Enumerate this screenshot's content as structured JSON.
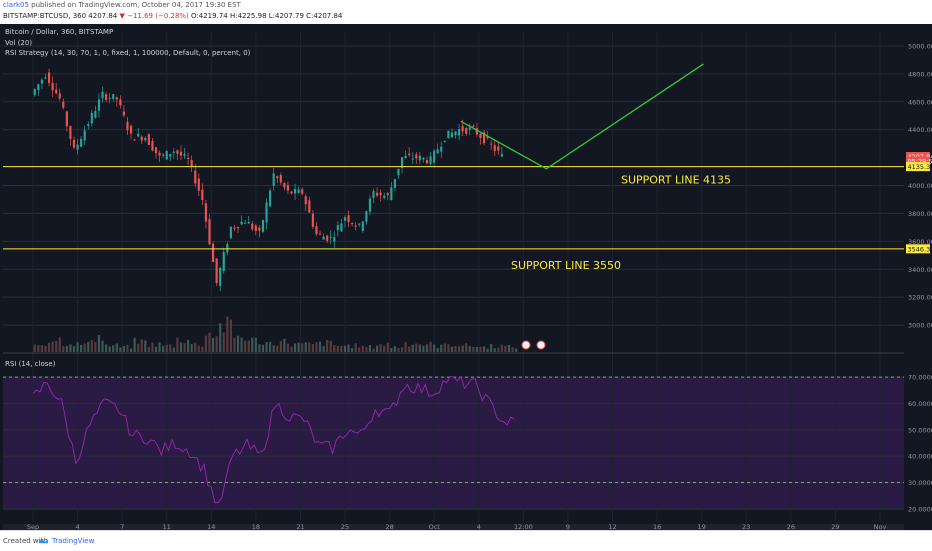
{
  "header": {
    "user": "clark05",
    "published": "published on TradingView.com, October 04, 2017 19:30 EST",
    "symbol": "BITSTAMP:BTCUSD, 360",
    "last": "4207.84",
    "change": "▼ −11.69 (−0.28%)",
    "ohlc": "O:4219.74 H:4225.98 L:4207.79 C:4207.84"
  },
  "legend": {
    "title": "Bitcoin / Dollar, 360, BITSTAMP",
    "vol": "Vol (20)",
    "strategy": "RSI Strategy (14, 30, 70, 1, 0, fixed, 1, 100000, Default, 0, percent, 0)",
    "rsi": "RSI (14, close)"
  },
  "footer": {
    "created": "Created with",
    "brand": "TradingView"
  },
  "colors": {
    "background": "#131722",
    "bull": "#26a69a",
    "bear": "#ef5350",
    "support": "#ffeb3b",
    "projection": "#33cc33",
    "rsi_line": "#9c27b0",
    "rsi_band": "#2a1b45"
  },
  "chart_data": [
    {
      "type": "candlestick",
      "title": "Bitcoin / Dollar, 360, BITSTAMP",
      "ylim": [
        2800,
        5100
      ],
      "y_scale": "linear",
      "y_ticks": [
        "5000.00",
        "4800.00",
        "4600.00",
        "4400.00",
        "4207.84",
        "4000.00",
        "3800.00",
        "3600.00",
        "3400.00",
        "3200.00",
        "3000.00"
      ],
      "x_ticks": [
        "Sep",
        "4",
        "7",
        "11",
        "14",
        "18",
        "21",
        "25",
        "28",
        "Oct",
        "4",
        "12:00",
        "9",
        "12",
        "16",
        "19",
        "23",
        "26",
        "29",
        "Nov"
      ],
      "price_labels": [
        {
          "value": 4207.84,
          "label": "4207.84",
          "color": "#ef5350"
        },
        {
          "value": 4175.0,
          "label": "05:29:50",
          "color": "#ef5350"
        },
        {
          "value": 4135.34,
          "label": "4135.34",
          "color": "#ffeb3b"
        },
        {
          "value": 3546.33,
          "label": "3546.33",
          "color": "#ffeb3b"
        }
      ],
      "support_lines": [
        {
          "value": 4135.34,
          "label": "SUPPORT LINE 4135"
        },
        {
          "value": 3546.33,
          "label": "SUPPORT LINE 3550"
        }
      ],
      "projection": [
        {
          "date": "Oct 1",
          "price": 4460
        },
        {
          "date": "Oct 7",
          "price": 4120
        },
        {
          "date": "Oct 18",
          "price": 4870
        }
      ],
      "price_path": [
        [
          "Sep 1",
          4650
        ],
        [
          "Sep 2",
          4800
        ],
        [
          "Sep 3",
          4620
        ],
        [
          "Sep 4",
          4250
        ],
        [
          "Sep 5",
          4450
        ],
        [
          "Sep 6",
          4650
        ],
        [
          "Sep 7",
          4620
        ],
        [
          "Sep 8",
          4350
        ],
        [
          "Sep 9",
          4350
        ],
        [
          "Sep 10",
          4200
        ],
        [
          "Sep 11",
          4250
        ],
        [
          "Sep 12",
          4180
        ],
        [
          "Sep 13",
          3900
        ],
        [
          "Sep 14",
          3300
        ],
        [
          "Sep 15",
          3700
        ],
        [
          "Sep 16",
          3750
        ],
        [
          "Sep 17",
          3650
        ],
        [
          "Sep 18",
          4080
        ],
        [
          "Sep 19",
          3950
        ],
        [
          "Sep 20",
          3950
        ],
        [
          "Sep 21",
          3650
        ],
        [
          "Sep 22",
          3620
        ],
        [
          "Sep 23",
          3780
        ],
        [
          "Sep 24",
          3700
        ],
        [
          "Sep 25",
          3950
        ],
        [
          "Sep 26",
          3920
        ],
        [
          "Sep 27",
          4200
        ],
        [
          "Sep 28",
          4200
        ],
        [
          "Sep 29",
          4180
        ],
        [
          "Sep 30",
          4350
        ],
        [
          "Oct 1",
          4400
        ],
        [
          "Oct 2",
          4400
        ],
        [
          "Oct 3",
          4310
        ],
        [
          "Oct 4",
          4210
        ]
      ]
    },
    {
      "type": "bar",
      "title": "Vol (20)",
      "values_relative": [
        0.3,
        0.5,
        0.35,
        0.3,
        0.6,
        0.25,
        0.2,
        0.4,
        0.3,
        0.25,
        0.5,
        0.3,
        0.7,
        1.0,
        0.6,
        0.45,
        0.35,
        0.4,
        0.3,
        0.3,
        0.35,
        0.25,
        0.25,
        0.2,
        0.3,
        0.2,
        0.35,
        0.3,
        0.25,
        0.3,
        0.25,
        0.2,
        0.25,
        0.2
      ]
    },
    {
      "type": "line",
      "title": "RSI (14, close)",
      "ylim": [
        15,
        75
      ],
      "y_ticks": [
        "70.0000",
        "60.0000",
        "50.0000",
        "40.0000",
        "30.0000",
        "20.0000"
      ],
      "bands": [
        30,
        70
      ],
      "values": [
        62,
        68,
        60,
        38,
        52,
        60,
        58,
        48,
        47,
        42,
        45,
        42,
        35,
        20,
        40,
        44,
        40,
        60,
        55,
        54,
        44,
        43,
        50,
        48,
        58,
        56,
        67,
        66,
        64,
        69,
        68,
        67,
        60,
        53
      ]
    }
  ]
}
